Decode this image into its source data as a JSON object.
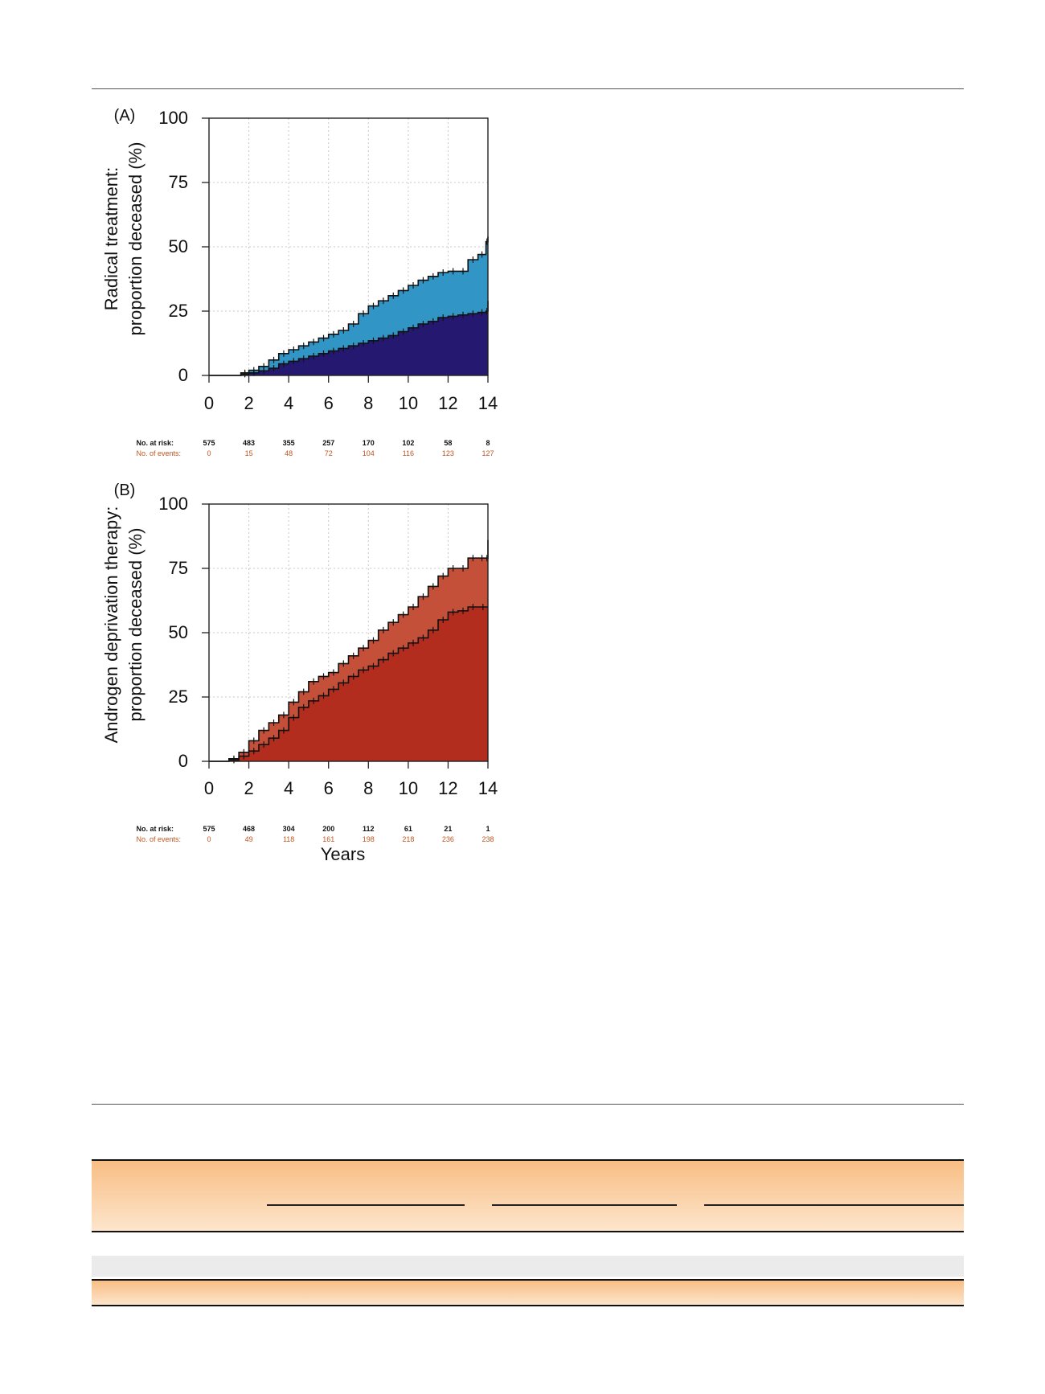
{
  "chart_data": [
    {
      "type": "area",
      "panel_label": "(A)",
      "ylabel_line1": "Radical treatment:",
      "ylabel_line2": "proportion deceased (%)",
      "xlabel": "",
      "xlim": [
        0,
        14
      ],
      "ylim": [
        0,
        100
      ],
      "xticks": [
        "0",
        "2",
        "4",
        "6",
        "8",
        "10",
        "12",
        "14"
      ],
      "yticks": [
        "0",
        "25",
        "50",
        "75",
        "100"
      ],
      "grid": true,
      "colors": {
        "lower": "#251870",
        "upper": "#3196c5"
      },
      "series": [
        {
          "name": "lower",
          "x": [
            0,
            1,
            1.6,
            2,
            2.5,
            3,
            3.5,
            4,
            4.5,
            5,
            5.5,
            6,
            6.5,
            7,
            7.5,
            8,
            8.5,
            9,
            9.5,
            10,
            10.5,
            11,
            11.5,
            12,
            12.5,
            13,
            13.5,
            13.9,
            14
          ],
          "y": [
            0,
            0,
            0.5,
            1,
            1.8,
            2.8,
            4.5,
            5.5,
            6.5,
            7.5,
            8.5,
            9.5,
            10.5,
            11.5,
            12.5,
            13.5,
            14.5,
            15.5,
            17,
            18.5,
            20,
            21,
            22.5,
            23,
            23.5,
            24,
            24.5,
            25,
            29
          ]
        },
        {
          "name": "upper",
          "x": [
            0,
            1,
            1.6,
            2,
            2.5,
            3,
            3.5,
            4,
            4.5,
            5,
            5.5,
            6,
            6.5,
            7,
            7.5,
            8,
            8.5,
            9,
            9.5,
            10,
            10.5,
            11,
            11.5,
            12,
            12.5,
            13,
            13.5,
            13.9,
            14
          ],
          "y": [
            0,
            0,
            1,
            2,
            3.5,
            6,
            8.5,
            10,
            11.5,
            13,
            14.5,
            16,
            17.5,
            20,
            24,
            27,
            29,
            31,
            33,
            35,
            37,
            38.5,
            40,
            40.5,
            40.5,
            45,
            47,
            52,
            54
          ]
        }
      ],
      "risk_table": {
        "at_risk_label": "No. at risk:",
        "events_label": "No. of events:",
        "at_risk": [
          "575",
          "483",
          "355",
          "257",
          "170",
          "102",
          "58",
          "8"
        ],
        "events": [
          "0",
          "15",
          "48",
          "72",
          "104",
          "116",
          "123",
          "127"
        ]
      }
    },
    {
      "type": "area",
      "panel_label": "(B)",
      "ylabel_line1": "Androgen deprivation therapy:",
      "ylabel_line2": "proportion deceased (%)",
      "xlabel": "Years",
      "xlim": [
        0,
        14
      ],
      "ylim": [
        0,
        100
      ],
      "xticks": [
        "0",
        "2",
        "4",
        "6",
        "8",
        "10",
        "12",
        "14"
      ],
      "yticks": [
        "0",
        "25",
        "50",
        "75",
        "100"
      ],
      "grid": true,
      "colors": {
        "lower": "#b22d1e",
        "upper": "#c4503a"
      },
      "series": [
        {
          "name": "lower",
          "x": [
            0,
            0.5,
            1,
            1.5,
            2,
            2.5,
            3,
            3.5,
            4,
            4.5,
            5,
            5.5,
            6,
            6.5,
            7,
            7.5,
            8,
            8.5,
            9,
            9.5,
            10,
            10.5,
            11,
            11.5,
            12,
            12.5,
            13,
            13.5,
            14
          ],
          "y": [
            0,
            0,
            0.5,
            2,
            4,
            6.5,
            9,
            12,
            17,
            21,
            23.5,
            25.5,
            28,
            30.5,
            33,
            35.5,
            37,
            39.5,
            42,
            44,
            46,
            48,
            51,
            55,
            58,
            58.5,
            60,
            60,
            60
          ]
        },
        {
          "name": "upper",
          "x": [
            0,
            0.5,
            1,
            1.5,
            2,
            2.5,
            3,
            3.5,
            4,
            4.5,
            5,
            5.5,
            6,
            6.5,
            7,
            7.5,
            8,
            8.5,
            9,
            9.5,
            10,
            10.5,
            11,
            11.5,
            12,
            12.5,
            13,
            13.5,
            13.9,
            14
          ],
          "y": [
            0,
            0,
            1,
            3.5,
            8,
            12,
            15,
            18,
            23,
            27,
            31,
            33,
            34.5,
            38,
            41,
            44,
            47,
            51,
            54,
            57,
            60,
            64,
            68,
            72,
            75,
            75,
            79,
            79,
            79,
            86
          ]
        }
      ],
      "risk_table": {
        "at_risk_label": "No. at risk:",
        "events_label": "No. of events:",
        "at_risk": [
          "575",
          "468",
          "304",
          "200",
          "112",
          "61",
          "21",
          "1"
        ],
        "events": [
          "0",
          "49",
          "118",
          "161",
          "198",
          "218",
          "236",
          "238"
        ]
      }
    }
  ]
}
